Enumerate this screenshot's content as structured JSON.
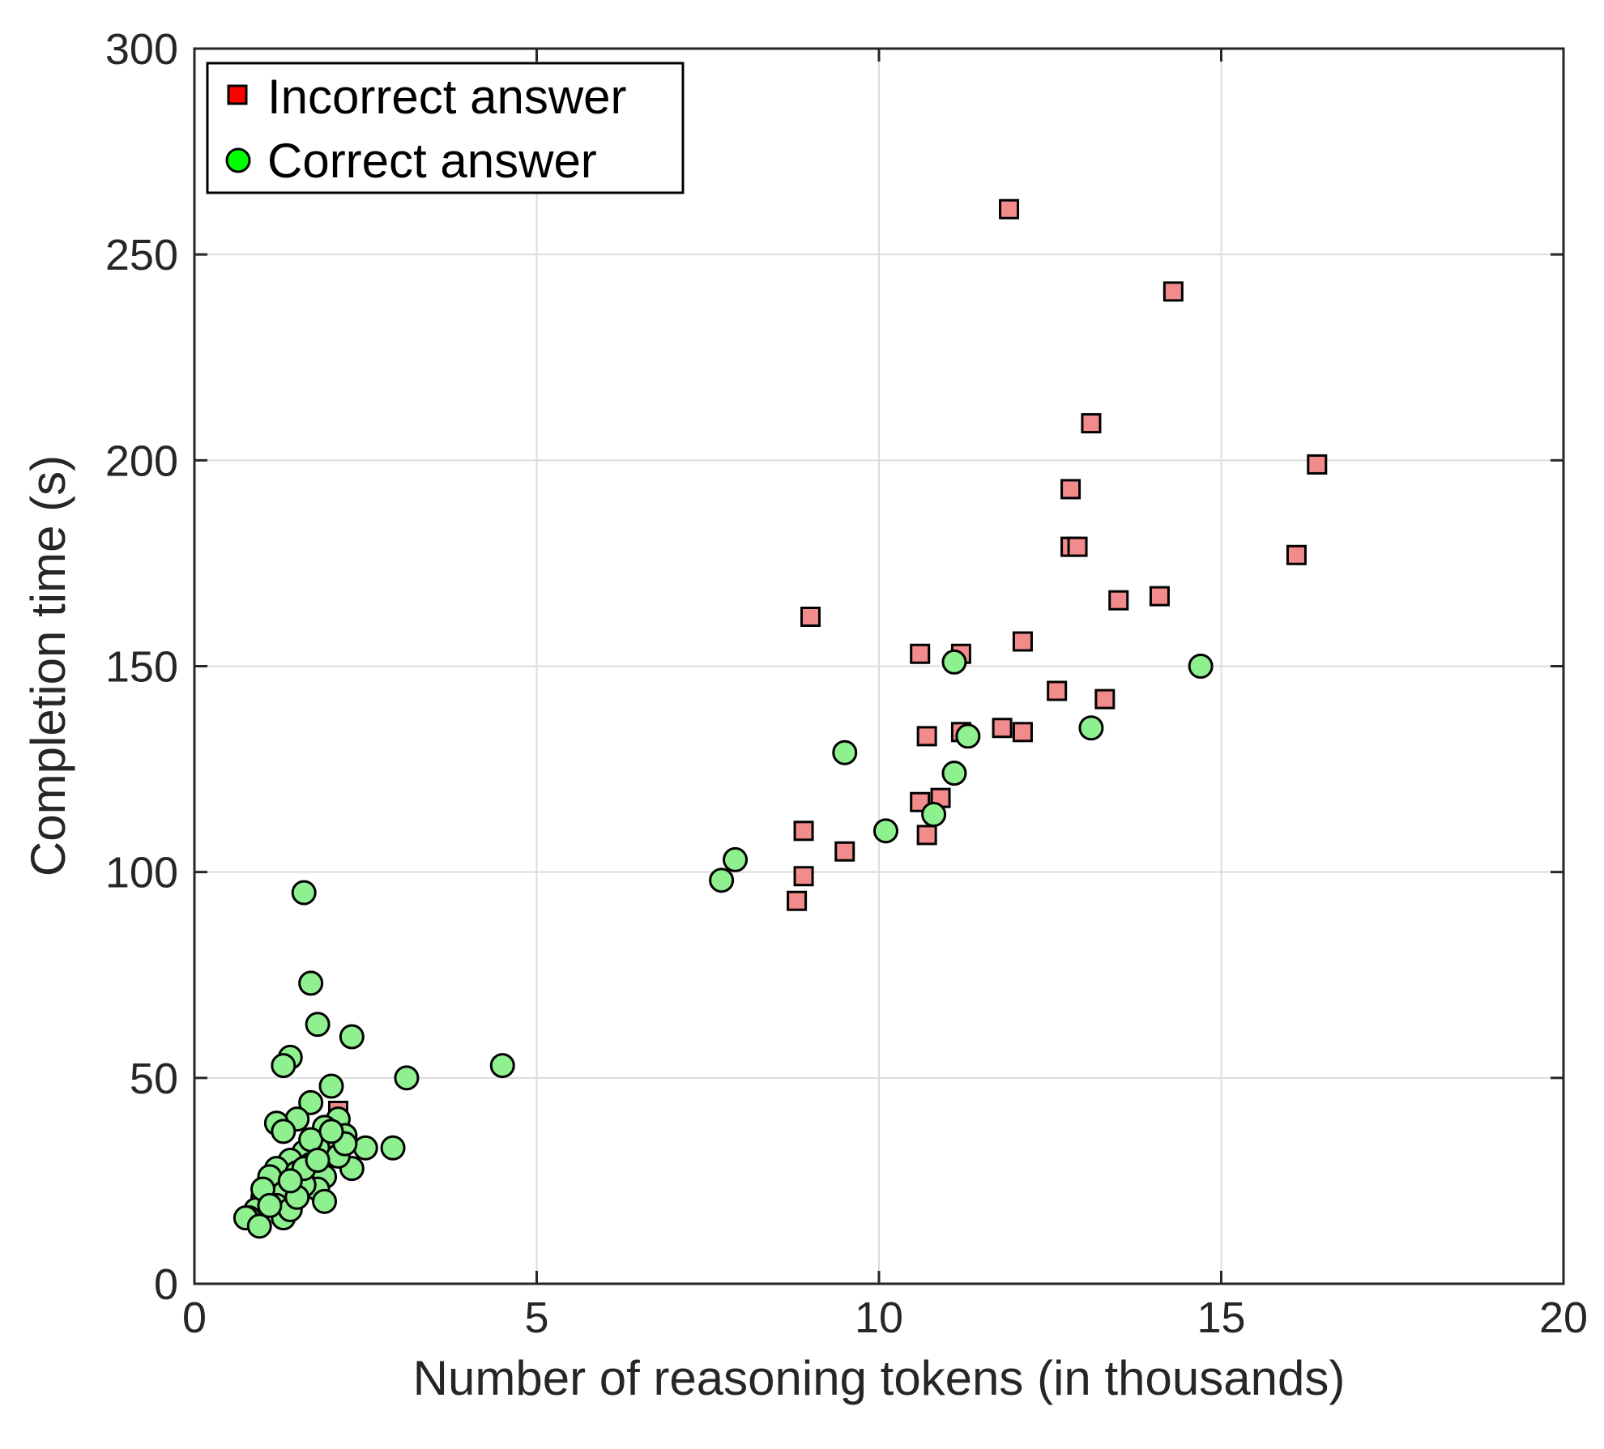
{
  "chart_data": {
    "type": "scatter",
    "title": "",
    "xlabel": "Number of reasoning tokens (in thousands)",
    "ylabel": "Completion time (s)",
    "xlim": [
      0,
      20
    ],
    "ylim": [
      0,
      300
    ],
    "xticks": [
      0,
      5,
      10,
      15,
      20
    ],
    "yticks": [
      0,
      50,
      100,
      150,
      200,
      250,
      300
    ],
    "xtick_labels": [
      "0",
      "5",
      "10",
      "15",
      "20"
    ],
    "ytick_labels": [
      "0",
      "50",
      "100",
      "150",
      "200",
      "250",
      "300"
    ],
    "grid": true,
    "legend_position": "top-left",
    "series": [
      {
        "name": "Incorrect answer",
        "marker": "square",
        "color": "#ff0000",
        "point_color": "#f28b8b",
        "points": [
          [
            11.9,
            261
          ],
          [
            14.3,
            241
          ],
          [
            13.1,
            209
          ],
          [
            16.4,
            199
          ],
          [
            12.8,
            193
          ],
          [
            12.8,
            179
          ],
          [
            12.9,
            179
          ],
          [
            16.1,
            177
          ],
          [
            14.1,
            167
          ],
          [
            13.5,
            166
          ],
          [
            9.0,
            162
          ],
          [
            10.6,
            153
          ],
          [
            11.2,
            153
          ],
          [
            12.1,
            156
          ],
          [
            12.6,
            144
          ],
          [
            13.3,
            142
          ],
          [
            11.2,
            134
          ],
          [
            11.8,
            135
          ],
          [
            12.1,
            134
          ],
          [
            10.7,
            133
          ],
          [
            10.9,
            118
          ],
          [
            10.6,
            117
          ],
          [
            10.7,
            109
          ],
          [
            8.9,
            110
          ],
          [
            9.5,
            105
          ],
          [
            8.9,
            99
          ],
          [
            8.8,
            93
          ],
          [
            2.1,
            42
          ]
        ]
      },
      {
        "name": "Correct answer",
        "marker": "circle",
        "color": "#00ff00",
        "point_color": "#8ff08f",
        "points": [
          [
            14.7,
            150
          ],
          [
            11.1,
            151
          ],
          [
            13.1,
            135
          ],
          [
            11.3,
            133
          ],
          [
            9.5,
            129
          ],
          [
            11.1,
            124
          ],
          [
            10.8,
            114
          ],
          [
            10.1,
            110
          ],
          [
            7.9,
            103
          ],
          [
            7.7,
            98
          ],
          [
            4.5,
            53
          ],
          [
            3.1,
            50
          ],
          [
            1.6,
            95
          ],
          [
            1.7,
            73
          ],
          [
            1.8,
            63
          ],
          [
            2.3,
            60
          ],
          [
            1.4,
            55
          ],
          [
            1.3,
            53
          ],
          [
            2.0,
            48
          ],
          [
            2.9,
            33
          ],
          [
            1.7,
            44
          ],
          [
            1.5,
            40
          ],
          [
            1.2,
            39
          ],
          [
            1.3,
            37
          ],
          [
            2.1,
            40
          ],
          [
            1.9,
            38
          ],
          [
            2.2,
            36
          ],
          [
            2.0,
            35
          ],
          [
            1.8,
            33
          ],
          [
            1.6,
            32
          ],
          [
            2.5,
            33
          ],
          [
            1.4,
            30
          ],
          [
            1.2,
            28
          ],
          [
            1.1,
            26
          ],
          [
            1.5,
            27
          ],
          [
            1.7,
            29
          ],
          [
            1.9,
            26
          ],
          [
            2.3,
            28
          ],
          [
            1.8,
            23
          ],
          [
            1.6,
            24
          ],
          [
            1.3,
            22
          ],
          [
            1.0,
            21
          ],
          [
            1.2,
            19
          ],
          [
            0.9,
            18
          ],
          [
            0.8,
            16
          ],
          [
            0.75,
            16
          ],
          [
            0.95,
            14
          ],
          [
            1.3,
            16
          ],
          [
            1.4,
            18
          ],
          [
            1.9,
            20
          ],
          [
            2.1,
            31
          ],
          [
            1.7,
            35
          ],
          [
            1.5,
            21
          ],
          [
            1.0,
            23
          ],
          [
            2.2,
            34
          ],
          [
            1.6,
            28
          ],
          [
            1.4,
            25
          ],
          [
            1.1,
            19
          ],
          [
            1.8,
            30
          ],
          [
            2.0,
            37
          ]
        ]
      }
    ]
  }
}
